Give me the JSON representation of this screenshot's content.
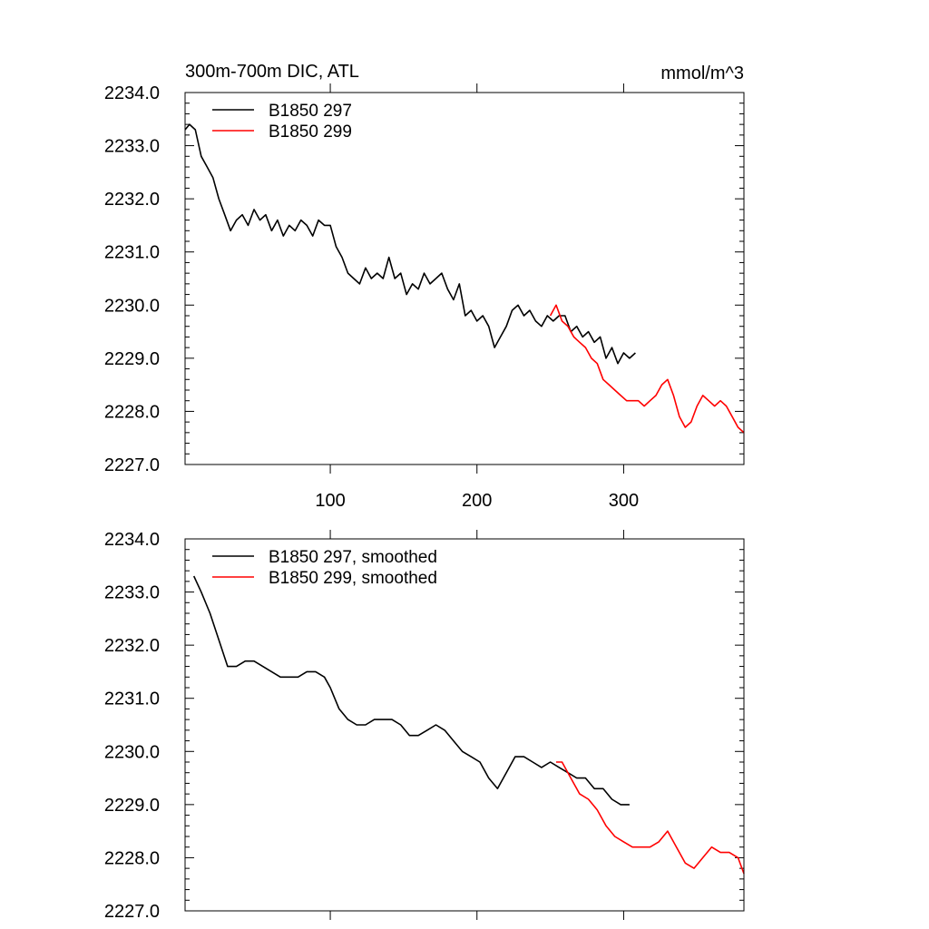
{
  "chart_data": [
    {
      "type": "line",
      "title_left": "300m-700m DIC, ATL",
      "title_right": "mmol/m^3",
      "xlim": [
        1,
        382
      ],
      "ylim": [
        2227.0,
        2234.0
      ],
      "xticks": [
        100,
        200,
        300
      ],
      "xtick_labels": [
        "100",
        "200",
        "300"
      ],
      "yticks": [
        2227.0,
        2228.0,
        2229.0,
        2230.0,
        2231.0,
        2232.0,
        2233.0,
        2234.0
      ],
      "ytick_labels": [
        "2227.0",
        "2228.0",
        "2229.0",
        "2230.0",
        "2231.0",
        "2232.0",
        "2233.0",
        "2234.0"
      ],
      "legend_position": "top-left",
      "series": [
        {
          "name": "B1850 297",
          "color": "#000000",
          "x": [
            1,
            4,
            8,
            12,
            16,
            20,
            24,
            28,
            32,
            36,
            40,
            44,
            48,
            52,
            56,
            60,
            64,
            68,
            72,
            76,
            80,
            84,
            88,
            92,
            96,
            100,
            104,
            108,
            112,
            116,
            120,
            124,
            128,
            132,
            136,
            140,
            144,
            148,
            152,
            156,
            160,
            164,
            168,
            172,
            176,
            180,
            184,
            188,
            192,
            196,
            200,
            204,
            208,
            212,
            216,
            220,
            224,
            228,
            232,
            236,
            240,
            244,
            248,
            252,
            256,
            260,
            264,
            268,
            272,
            276,
            280,
            284,
            288,
            292,
            296,
            300,
            304,
            308
          ],
          "y": [
            2233.3,
            2233.4,
            2233.3,
            2232.8,
            2232.6,
            2232.4,
            2232.0,
            2231.7,
            2231.4,
            2231.6,
            2231.7,
            2231.5,
            2231.8,
            2231.6,
            2231.7,
            2231.4,
            2231.6,
            2231.3,
            2231.5,
            2231.4,
            2231.6,
            2231.5,
            2231.3,
            2231.6,
            2231.5,
            2231.5,
            2231.1,
            2230.9,
            2230.6,
            2230.5,
            2230.4,
            2230.7,
            2230.5,
            2230.6,
            2230.5,
            2230.9,
            2230.5,
            2230.6,
            2230.2,
            2230.4,
            2230.3,
            2230.6,
            2230.4,
            2230.5,
            2230.6,
            2230.3,
            2230.1,
            2230.4,
            2229.8,
            2229.9,
            2229.7,
            2229.8,
            2229.6,
            2229.2,
            2229.4,
            2229.6,
            2229.9,
            2230.0,
            2229.8,
            2229.9,
            2229.7,
            2229.6,
            2229.8,
            2229.7,
            2229.8,
            2229.8,
            2229.5,
            2229.6,
            2229.4,
            2229.5,
            2229.3,
            2229.4,
            2229.0,
            2229.2,
            2228.9,
            2229.1,
            2229.0,
            2229.1
          ]
        },
        {
          "name": "B1850 299",
          "color": "#ff0000",
          "x": [
            250,
            254,
            258,
            262,
            266,
            270,
            274,
            278,
            282,
            286,
            290,
            294,
            298,
            302,
            306,
            310,
            314,
            318,
            322,
            326,
            330,
            334,
            338,
            342,
            346,
            350,
            354,
            358,
            362,
            366,
            370,
            374,
            378,
            382
          ],
          "y": [
            2229.8,
            2230.0,
            2229.7,
            2229.6,
            2229.4,
            2229.3,
            2229.2,
            2229.0,
            2228.9,
            2228.6,
            2228.5,
            2228.4,
            2228.3,
            2228.2,
            2228.2,
            2228.2,
            2228.1,
            2228.2,
            2228.3,
            2228.5,
            2228.6,
            2228.3,
            2227.9,
            2227.7,
            2227.8,
            2228.1,
            2228.3,
            2228.2,
            2228.1,
            2228.2,
            2228.1,
            2227.9,
            2227.7,
            2227.6
          ]
        }
      ]
    },
    {
      "type": "line",
      "xlim": [
        1,
        382
      ],
      "ylim": [
        2227.0,
        2234.0
      ],
      "xticks": [
        100,
        200,
        300
      ],
      "yticks": [
        2227.0,
        2228.0,
        2229.0,
        2230.0,
        2231.0,
        2232.0,
        2233.0,
        2234.0
      ],
      "ytick_labels": [
        "2227.0",
        "2228.0",
        "2229.0",
        "2230.0",
        "2231.0",
        "2232.0",
        "2233.0",
        "2234.0"
      ],
      "legend_position": "top-left",
      "series": [
        {
          "name": "B1850 297, smoothed",
          "color": "#000000",
          "x": [
            7,
            12,
            18,
            24,
            30,
            36,
            42,
            48,
            54,
            60,
            66,
            72,
            78,
            84,
            90,
            96,
            100,
            106,
            112,
            118,
            124,
            130,
            136,
            142,
            148,
            154,
            160,
            166,
            172,
            178,
            184,
            190,
            196,
            202,
            208,
            214,
            220,
            226,
            232,
            238,
            244,
            250,
            256,
            262,
            268,
            274,
            280,
            286,
            292,
            298,
            304
          ],
          "y": [
            2233.3,
            2233.0,
            2232.6,
            2232.1,
            2231.6,
            2231.6,
            2231.7,
            2231.7,
            2231.6,
            2231.5,
            2231.4,
            2231.4,
            2231.4,
            2231.5,
            2231.5,
            2231.4,
            2231.2,
            2230.8,
            2230.6,
            2230.5,
            2230.5,
            2230.6,
            2230.6,
            2230.6,
            2230.5,
            2230.3,
            2230.3,
            2230.4,
            2230.5,
            2230.4,
            2230.2,
            2230.0,
            2229.9,
            2229.8,
            2229.5,
            2229.3,
            2229.6,
            2229.9,
            2229.9,
            2229.8,
            2229.7,
            2229.8,
            2229.7,
            2229.6,
            2229.5,
            2229.5,
            2229.3,
            2229.3,
            2229.1,
            2229.0,
            2229.0
          ]
        },
        {
          "name": "B1850 299, smoothed",
          "color": "#ff0000",
          "x": [
            254,
            258,
            264,
            270,
            276,
            282,
            288,
            294,
            300,
            306,
            312,
            318,
            324,
            330,
            336,
            342,
            348,
            354,
            360,
            366,
            372,
            378,
            382
          ],
          "y": [
            2229.8,
            2229.8,
            2229.5,
            2229.2,
            2229.1,
            2228.9,
            2228.6,
            2228.4,
            2228.3,
            2228.2,
            2228.2,
            2228.2,
            2228.3,
            2228.5,
            2228.2,
            2227.9,
            2227.8,
            2228.0,
            2228.2,
            2228.1,
            2228.1,
            2228.0,
            2227.7
          ]
        }
      ]
    }
  ]
}
